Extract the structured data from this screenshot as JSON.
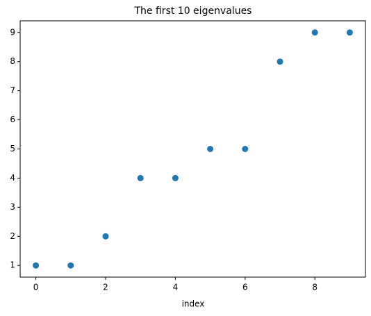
{
  "chart_data": {
    "type": "scatter",
    "title": "The first 10 eigenvalues",
    "xlabel": "index",
    "x": [
      0,
      1,
      2,
      3,
      4,
      5,
      6,
      7,
      8,
      9
    ],
    "values": [
      1,
      1,
      2,
      4,
      4,
      5,
      5,
      8,
      9,
      9
    ],
    "color": "#1f77b4",
    "xlim": [
      -0.45,
      9.45
    ],
    "xticks": [
      0,
      2,
      4,
      6,
      8
    ],
    "ylim": [
      0.6,
      9.4
    ],
    "yticks": [
      1,
      2,
      3,
      4,
      5,
      6,
      7,
      8,
      9
    ]
  }
}
